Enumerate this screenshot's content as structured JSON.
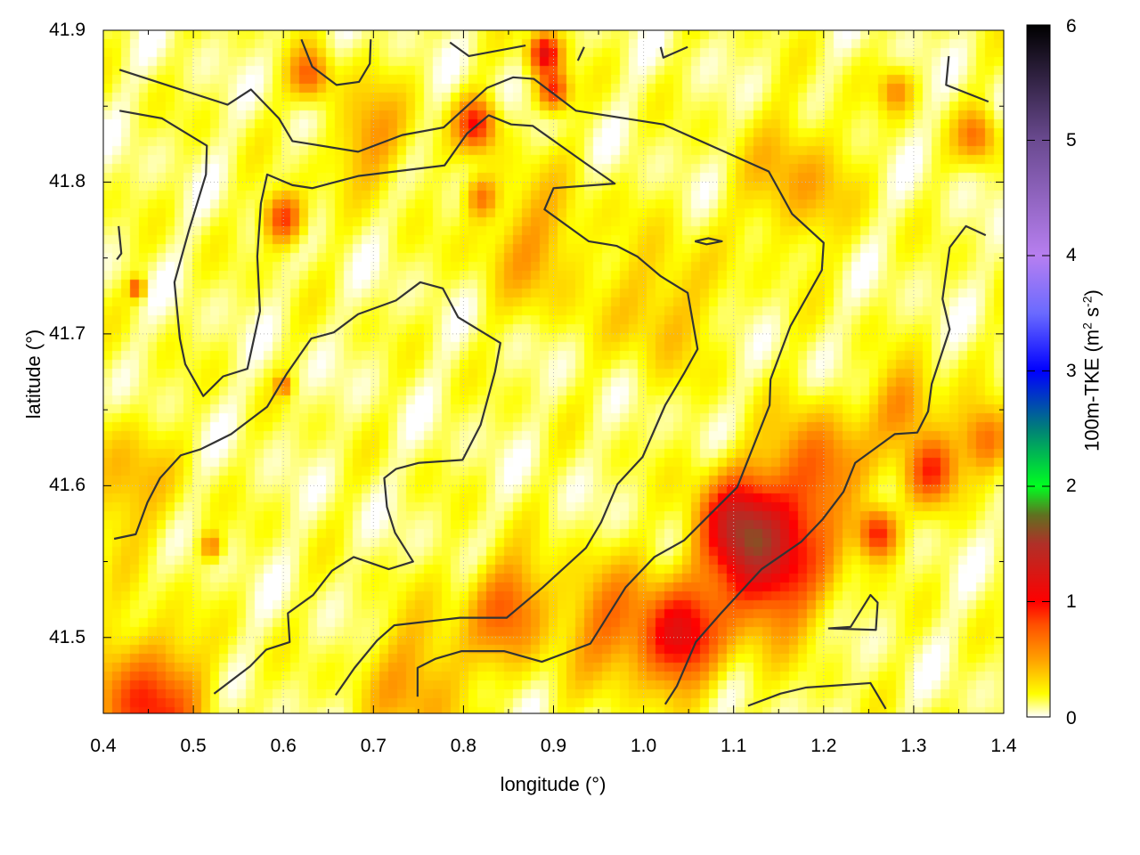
{
  "chart_data": {
    "type": "heatmap",
    "title": "",
    "xlabel": "longitude (°)",
    "ylabel": "latitude (°)",
    "xlim": [
      0.4,
      1.4
    ],
    "ylim": [
      41.45,
      41.9
    ],
    "xticks": [
      "0.4",
      "0.5",
      "0.6",
      "0.7",
      "0.8",
      "0.9",
      "1.0",
      "1.1",
      "1.2",
      "1.3",
      "1.4"
    ],
    "yticks": [
      "41.5",
      "41.6",
      "41.7",
      "41.8",
      "41.9"
    ],
    "grid": true,
    "colorbar": {
      "label_parts": [
        "100m-TKE (m",
        "2",
        " s",
        "-2",
        ")"
      ],
      "range": [
        0,
        6
      ],
      "ticks": [
        "0",
        "1",
        "2",
        "3",
        "4",
        "5",
        "6"
      ],
      "stops": [
        [
          0,
          "#ffffff"
        ],
        [
          0.2,
          "#ffff00"
        ],
        [
          0.5,
          "#ffa000"
        ],
        [
          0.8,
          "#ff5000"
        ],
        [
          1.0,
          "#ff0000"
        ],
        [
          1.5,
          "#b03028"
        ],
        [
          1.75,
          "#607020"
        ],
        [
          2.0,
          "#00ff20"
        ],
        [
          2.5,
          "#008078"
        ],
        [
          3.0,
          "#0000ff"
        ],
        [
          3.5,
          "#6a6aff"
        ],
        [
          4.0,
          "#b77ff0"
        ],
        [
          5.0,
          "#6a4a90"
        ],
        [
          6.0,
          "#000000"
        ]
      ]
    },
    "hotspots": [
      {
        "lon": 1.14,
        "lat": 41.55,
        "spread": 0.04,
        "value": 1.1
      },
      {
        "lon": 1.1,
        "lat": 41.575,
        "spread": 0.03,
        "value": 0.8
      },
      {
        "lon": 1.04,
        "lat": 41.5,
        "spread": 0.03,
        "value": 1.0
      },
      {
        "lon": 1.19,
        "lat": 41.61,
        "spread": 0.035,
        "value": 0.6
      },
      {
        "lon": 0.85,
        "lat": 41.52,
        "spread": 0.03,
        "value": 0.6
      },
      {
        "lon": 0.96,
        "lat": 41.51,
        "spread": 0.035,
        "value": 0.5
      },
      {
        "lon": 0.45,
        "lat": 41.455,
        "spread": 0.04,
        "value": 0.8
      },
      {
        "lon": 0.6,
        "lat": 41.776,
        "spread": 0.015,
        "value": 0.8
      },
      {
        "lon": 0.814,
        "lat": 41.838,
        "spread": 0.015,
        "value": 0.8
      },
      {
        "lon": 0.89,
        "lat": 41.885,
        "spread": 0.012,
        "value": 1.0
      },
      {
        "lon": 0.9,
        "lat": 41.86,
        "spread": 0.012,
        "value": 0.8
      },
      {
        "lon": 1.26,
        "lat": 41.569,
        "spread": 0.015,
        "value": 0.9
      },
      {
        "lon": 1.32,
        "lat": 41.61,
        "spread": 0.02,
        "value": 0.7
      },
      {
        "lon": 1.38,
        "lat": 41.63,
        "spread": 0.02,
        "value": 0.6
      },
      {
        "lon": 1.29,
        "lat": 41.65,
        "spread": 0.025,
        "value": 0.5
      },
      {
        "lon": 0.63,
        "lat": 41.87,
        "spread": 0.015,
        "value": 0.6
      },
      {
        "lon": 0.82,
        "lat": 41.79,
        "spread": 0.012,
        "value": 0.5
      },
      {
        "lon": 0.437,
        "lat": 41.73,
        "spread": 0.006,
        "value": 0.7
      },
      {
        "lon": 0.6,
        "lat": 41.666,
        "spread": 0.006,
        "value": 0.5
      },
      {
        "lon": 0.52,
        "lat": 41.56,
        "spread": 0.008,
        "value": 0.5
      },
      {
        "lon": 1.37,
        "lat": 41.83,
        "spread": 0.015,
        "value": 0.5
      },
      {
        "lon": 1.28,
        "lat": 41.86,
        "spread": 0.012,
        "value": 0.4
      },
      {
        "lon": 0.7,
        "lat": 41.83,
        "spread": 0.03,
        "value": 0.4
      },
      {
        "lon": 0.88,
        "lat": 41.76,
        "spread": 0.04,
        "value": 0.35
      },
      {
        "lon": 1.17,
        "lat": 41.8,
        "spread": 0.04,
        "value": 0.35
      },
      {
        "lon": 0.75,
        "lat": 41.47,
        "spread": 0.04,
        "value": 0.4
      },
      {
        "lon": 0.42,
        "lat": 41.6,
        "spread": 0.04,
        "value": 0.3
      },
      {
        "lon": 1.02,
        "lat": 41.72,
        "spread": 0.04,
        "value": 0.3
      }
    ],
    "contours": [
      [
        [
          0.418,
          41.874
        ],
        [
          0.465,
          41.865
        ],
        [
          0.538,
          41.851
        ],
        [
          0.564,
          41.861
        ],
        [
          0.595,
          41.842
        ],
        [
          0.61,
          41.827
        ],
        [
          0.683,
          41.82
        ],
        [
          0.732,
          41.831
        ],
        [
          0.778,
          41.836
        ],
        [
          0.826,
          41.862
        ],
        [
          0.855,
          41.869
        ],
        [
          0.878,
          41.868
        ],
        [
          0.925,
          41.847
        ],
        [
          1.022,
          41.838
        ],
        [
          1.09,
          41.82
        ],
        [
          1.139,
          41.807
        ],
        [
          1.165,
          41.779
        ],
        [
          1.2,
          41.76
        ],
        [
          1.198,
          41.742
        ],
        [
          1.163,
          41.705
        ],
        [
          1.141,
          41.67
        ],
        [
          1.14,
          41.653
        ],
        [
          1.104,
          41.599
        ],
        [
          1.045,
          41.564
        ],
        [
          1.012,
          41.553
        ],
        [
          0.98,
          41.533
        ],
        [
          0.941,
          41.496
        ],
        [
          0.887,
          41.484
        ],
        [
          0.845,
          41.491
        ],
        [
          0.798,
          41.491
        ],
        [
          0.769,
          41.486
        ],
        [
          0.749,
          41.48
        ],
        [
          0.749,
          41.461
        ]
      ],
      [
        [
          0.418,
          41.847
        ],
        [
          0.465,
          41.842
        ],
        [
          0.515,
          41.824
        ],
        [
          0.514,
          41.805
        ],
        [
          0.495,
          41.768
        ],
        [
          0.479,
          41.734
        ],
        [
          0.485,
          41.697
        ],
        [
          0.491,
          41.68
        ],
        [
          0.511,
          41.659
        ],
        [
          0.533,
          41.672
        ],
        [
          0.56,
          41.677
        ],
        [
          0.574,
          41.715
        ],
        [
          0.571,
          41.751
        ],
        [
          0.575,
          41.786
        ],
        [
          0.582,
          41.805
        ],
        [
          0.61,
          41.798
        ],
        [
          0.632,
          41.796
        ],
        [
          0.683,
          41.804
        ],
        [
          0.779,
          41.811
        ],
        [
          0.804,
          41.832
        ],
        [
          0.828,
          41.844
        ],
        [
          0.853,
          41.838
        ],
        [
          0.877,
          41.837
        ],
        [
          0.934,
          41.813
        ],
        [
          0.968,
          41.799
        ],
        [
          0.9,
          41.796
        ],
        [
          0.89,
          41.782
        ],
        [
          0.939,
          41.761
        ],
        [
          0.97,
          41.758
        ],
        [
          0.993,
          41.751
        ],
        [
          1.019,
          41.738
        ],
        [
          1.049,
          41.727
        ],
        [
          1.06,
          41.69
        ],
        [
          1.045,
          41.674
        ],
        [
          1.024,
          41.653
        ],
        [
          0.999,
          41.619
        ],
        [
          0.971,
          41.601
        ],
        [
          0.953,
          41.576
        ],
        [
          0.936,
          41.559
        ],
        [
          0.888,
          41.533
        ],
        [
          0.848,
          41.513
        ],
        [
          0.796,
          41.513
        ],
        [
          0.723,
          41.508
        ],
        [
          0.704,
          41.498
        ],
        [
          0.679,
          41.48
        ],
        [
          0.658,
          41.462
        ]
      ],
      [
        [
          0.412,
          41.565
        ],
        [
          0.436,
          41.568
        ],
        [
          0.449,
          41.589
        ],
        [
          0.463,
          41.605
        ],
        [
          0.486,
          41.62
        ],
        [
          0.508,
          41.624
        ],
        [
          0.542,
          41.634
        ],
        [
          0.582,
          41.652
        ],
        [
          0.604,
          41.674
        ],
        [
          0.631,
          41.697
        ],
        [
          0.656,
          41.701
        ],
        [
          0.683,
          41.713
        ],
        [
          0.725,
          41.722
        ],
        [
          0.752,
          41.734
        ],
        [
          0.777,
          41.73
        ],
        [
          0.794,
          41.711
        ],
        [
          0.841,
          41.694
        ],
        [
          0.835,
          41.675
        ],
        [
          0.819,
          41.64
        ],
        [
          0.799,
          41.617
        ],
        [
          0.75,
          41.615
        ],
        [
          0.725,
          41.611
        ],
        [
          0.712,
          41.605
        ],
        [
          0.715,
          41.586
        ],
        [
          0.724,
          41.569
        ],
        [
          0.744,
          41.55
        ],
        [
          0.717,
          41.545
        ],
        [
          0.678,
          41.553
        ],
        [
          0.654,
          41.544
        ],
        [
          0.633,
          41.528
        ],
        [
          0.605,
          41.516
        ],
        [
          0.607,
          41.497
        ],
        [
          0.581,
          41.492
        ],
        [
          0.563,
          41.481
        ],
        [
          0.523,
          41.463
        ]
      ],
      [
        [
          1.024,
          41.456
        ],
        [
          1.037,
          41.468
        ],
        [
          1.058,
          41.497
        ],
        [
          1.086,
          41.516
        ],
        [
          1.131,
          41.545
        ],
        [
          1.175,
          41.563
        ],
        [
          1.199,
          41.578
        ],
        [
          1.222,
          41.596
        ],
        [
          1.235,
          41.615
        ],
        [
          1.279,
          41.634
        ],
        [
          1.304,
          41.635
        ],
        [
          1.316,
          41.649
        ],
        [
          1.32,
          41.667
        ],
        [
          1.34,
          41.703
        ],
        [
          1.332,
          41.723
        ],
        [
          1.34,
          41.757
        ],
        [
          1.358,
          41.771
        ],
        [
          1.38,
          41.765
        ]
      ],
      [
        [
          0.62,
          41.894
        ],
        [
          0.632,
          41.876
        ],
        [
          0.659,
          41.864
        ],
        [
          0.684,
          41.866
        ],
        [
          0.696,
          41.878
        ],
        [
          0.697,
          41.894
        ]
      ],
      [
        [
          0.785,
          41.892
        ],
        [
          0.806,
          41.883
        ],
        [
          0.869,
          41.89
        ]
      ],
      [
        [
          0.934,
          41.889
        ],
        [
          0.927,
          41.88
        ]
      ],
      [
        [
          1.019,
          41.889
        ],
        [
          1.022,
          41.882
        ],
        [
          1.049,
          41.889
        ]
      ],
      [
        [
          1.339,
          41.883
        ],
        [
          1.336,
          41.864
        ],
        [
          1.383,
          41.853
        ]
      ],
      [
        [
          0.417,
          41.771
        ],
        [
          0.42,
          41.753
        ],
        [
          0.415,
          41.749
        ]
      ],
      [
        [
          1.057,
          41.761
        ],
        [
          1.072,
          41.763
        ],
        [
          1.087,
          41.761
        ],
        [
          1.07,
          41.759
        ],
        [
          1.057,
          41.761
        ]
      ],
      [
        [
          1.205,
          41.506
        ],
        [
          1.23,
          41.507
        ],
        [
          1.252,
          41.528
        ],
        [
          1.26,
          41.523
        ],
        [
          1.258,
          41.505
        ],
        [
          1.205,
          41.506
        ]
      ],
      [
        [
          1.116,
          41.455
        ],
        [
          1.152,
          41.463
        ],
        [
          1.18,
          41.467
        ],
        [
          1.252,
          41.47
        ],
        [
          1.269,
          41.453
        ]
      ]
    ]
  }
}
